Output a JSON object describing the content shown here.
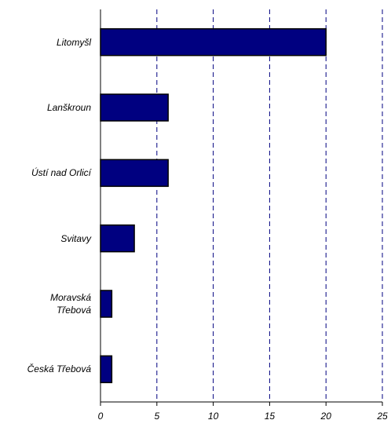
{
  "chart_data": {
    "type": "barh",
    "categories": [
      "Litomyšl",
      "Lanškroun",
      "Ústí nad Orlicí",
      "Svitavy",
      "Moravská\nTřebová",
      "Česká Třebová"
    ],
    "values": [
      20,
      6,
      6,
      3,
      1,
      1
    ],
    "color": "#000080",
    "xlim": [
      0,
      25
    ],
    "xticks": [
      0,
      5,
      10,
      15,
      20,
      25
    ],
    "grid": true
  }
}
